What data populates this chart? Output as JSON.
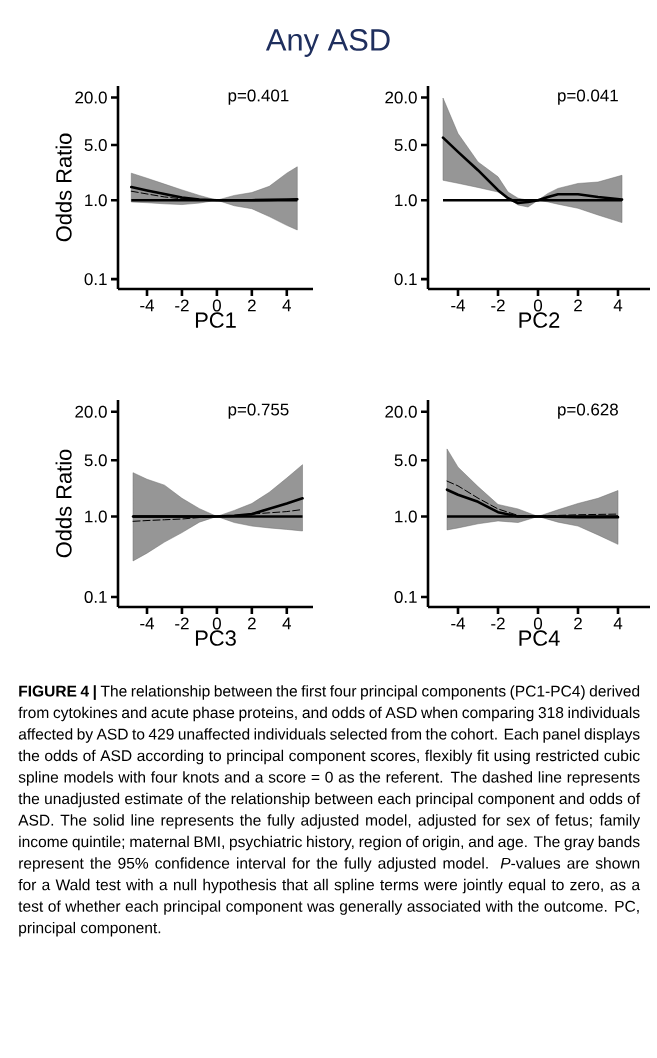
{
  "chart_data": [
    {
      "type": "line",
      "title": "Any ASD",
      "xlabel": "PC1",
      "ylabel": "Odds Ratio",
      "x": [
        -4.9,
        -4,
        -3,
        -2,
        -1,
        0,
        1,
        2,
        3,
        4,
        4.6
      ],
      "xlim": [
        -5.66,
        5.5
      ],
      "xticks": [
        -4,
        -2,
        0,
        2,
        4
      ],
      "ylim": [
        0.075,
        28
      ],
      "yticks": [
        {
          "value": 20,
          "label": "20.0"
        },
        {
          "value": 5,
          "label": "5.0"
        },
        {
          "value": 1,
          "label": "1.0"
        },
        {
          "value": 0.1,
          "label": "0.1"
        }
      ],
      "log": "y",
      "ref_lines": [
        {
          "axis": "y",
          "value": 1,
          "color": "#000000"
        }
      ],
      "annotations": [
        "p=0.401"
      ],
      "series": [
        {
          "color": "#000000",
          "line_style": "solid",
          "values": [
            1.47,
            1.33,
            1.2,
            1.08,
            1.02,
            1,
            1.0,
            1.0,
            1.01,
            1.02,
            1.03
          ],
          "lower": [
            0.95,
            0.93,
            0.9,
            0.88,
            0.92,
            1,
            0.85,
            0.78,
            0.62,
            0.48,
            0.42
          ],
          "upper": [
            2.2,
            1.9,
            1.6,
            1.35,
            1.15,
            1,
            1.15,
            1.25,
            1.5,
            2.2,
            2.65
          ]
        },
        {
          "color": "#000000",
          "line_style": "dashed",
          "values": [
            1.3,
            1.2,
            1.1,
            1.04,
            1.01,
            1,
            1,
            1,
            1.01,
            1.02,
            1.03
          ]
        }
      ]
    },
    {
      "type": "line",
      "xlabel": "PC2",
      "x": [
        -4.75,
        -4,
        -3,
        -2,
        -1.5,
        -1,
        -0.5,
        0,
        0.5,
        1,
        2,
        3,
        4.2
      ],
      "xlim": [
        -5.5,
        5.6
      ],
      "xticks": [
        -4,
        -2,
        0,
        2,
        4
      ],
      "ylim": [
        0.075,
        28
      ],
      "yticks": [
        {
          "value": 20,
          "label": "20.0"
        },
        {
          "value": 5,
          "label": "5.0"
        },
        {
          "value": 1,
          "label": "1.0"
        },
        {
          "value": 0.1,
          "label": "0.1"
        }
      ],
      "log": "y",
      "ref_lines": [
        {
          "axis": "y",
          "value": 1,
          "color": "#000000"
        }
      ],
      "annotations": [
        "p=0.041"
      ],
      "series": [
        {
          "color": "#000000",
          "line_style": "solid",
          "values": [
            6.2,
            4.1,
            2.4,
            1.34,
            1.06,
            0.92,
            0.95,
            1,
            1.1,
            1.19,
            1.19,
            1.1,
            1.02
          ],
          "lower": [
            1.79,
            1.64,
            1.45,
            1.27,
            1.06,
            0.87,
            0.82,
            1,
            0.95,
            0.89,
            0.79,
            0.65,
            0.52
          ],
          "upper": [
            19.7,
            7.0,
            3.05,
            1.98,
            1.27,
            1.06,
            1.0,
            1,
            1.22,
            1.41,
            1.63,
            1.7,
            2.07
          ]
        }
      ]
    },
    {
      "type": "line",
      "xlabel": "PC3",
      "ylabel": "Odds Ratio",
      "x": [
        -4.8,
        -4,
        -3,
        -2,
        -1,
        0,
        1,
        2,
        3,
        4,
        4.9
      ],
      "xlim": [
        -5.66,
        5.5
      ],
      "xticks": [
        -4,
        -2,
        0,
        2,
        4
      ],
      "ylim": [
        0.075,
        28
      ],
      "yticks": [
        {
          "value": 20,
          "label": "20.0"
        },
        {
          "value": 5,
          "label": "5.0"
        },
        {
          "value": 1,
          "label": "1.0"
        },
        {
          "value": 0.1,
          "label": "0.1"
        }
      ],
      "log": "y",
      "ref_lines": [
        {
          "axis": "y",
          "value": 1,
          "color": "#000000"
        }
      ],
      "annotations": [
        "p=0.755"
      ],
      "series": [
        {
          "color": "#000000",
          "line_style": "solid",
          "values": [
            1,
            1,
            1,
            1,
            1,
            1,
            1.02,
            1.07,
            1.25,
            1.45,
            1.68
          ],
          "lower": [
            0.28,
            0.35,
            0.48,
            0.63,
            0.85,
            1,
            0.84,
            0.76,
            0.72,
            0.69,
            0.66
          ],
          "upper": [
            3.5,
            2.9,
            2.45,
            1.68,
            1.25,
            1,
            1.19,
            1.45,
            2.0,
            3.0,
            4.4
          ]
        },
        {
          "color": "#000000",
          "line_style": "dashed",
          "values": [
            0.87,
            0.89,
            0.91,
            0.93,
            0.97,
            1,
            1.03,
            1.07,
            1.11,
            1.15,
            1.22
          ]
        }
      ]
    },
    {
      "type": "line",
      "xlabel": "PC4",
      "x": [
        -4.55,
        -4,
        -3,
        -2,
        -1,
        0,
        1,
        2,
        3,
        4
      ],
      "xlim": [
        -5.5,
        5.6
      ],
      "xticks": [
        -4,
        -2,
        0,
        2,
        4
      ],
      "ylim": [
        0.075,
        28
      ],
      "yticks": [
        {
          "value": 20,
          "label": "20.0"
        },
        {
          "value": 5,
          "label": "5.0"
        },
        {
          "value": 1,
          "label": "1.0"
        },
        {
          "value": 0.1,
          "label": "0.1"
        }
      ],
      "log": "y",
      "ref_lines": [
        {
          "axis": "y",
          "value": 1,
          "color": "#000000"
        }
      ],
      "annotations": [
        "p=0.628",
        "**FIGURE 4 |** The relationship between the first four principal components (PC1-PC4) derived from cytokines and acute phase proteins, and odds of ASD when comparing 318 individuals affected by ASD to 429 unaffected individuals selected from the cohort. Each panel displays the odds of ASD according to principal component scores, flexibly fit using restricted cubic spline models with four knots and a score = 0 as the referent. The dashed line represents the unadjusted estimate of the relationship between each principal component and odds of ASD. The solid line represents the fully adjusted model, adjusted for sex of fetus; family income quintile; maternal BMI, psychiatric history, region of origin, and age. The gray bands represent the 95% confidence interval for the fully adjusted model. *P*-values are shown for a Wald test with a null hypothesis that all spline terms were jointly equal to zero, as a test of whether each principal component was generally associated with the outcome. PC, principal component."
      ],
      "series": [
        {
          "color": "#000000",
          "line_style": "solid",
          "values": [
            2.15,
            1.86,
            1.52,
            1.13,
            1.0,
            1,
            0.99,
            0.98,
            0.98,
            0.98
          ],
          "lower": [
            0.68,
            0.72,
            0.81,
            0.88,
            0.84,
            1,
            0.85,
            0.76,
            0.59,
            0.45
          ],
          "upper": [
            6.9,
            4.1,
            2.35,
            1.41,
            1.24,
            1,
            1.21,
            1.45,
            1.68,
            2.1
          ]
        },
        {
          "color": "#000000",
          "line_style": "dashed",
          "values": [
            2.75,
            2.4,
            1.69,
            1.24,
            1.03,
            1,
            1.03,
            1.05,
            1.06,
            1.07
          ]
        }
      ]
    }
  ]
}
